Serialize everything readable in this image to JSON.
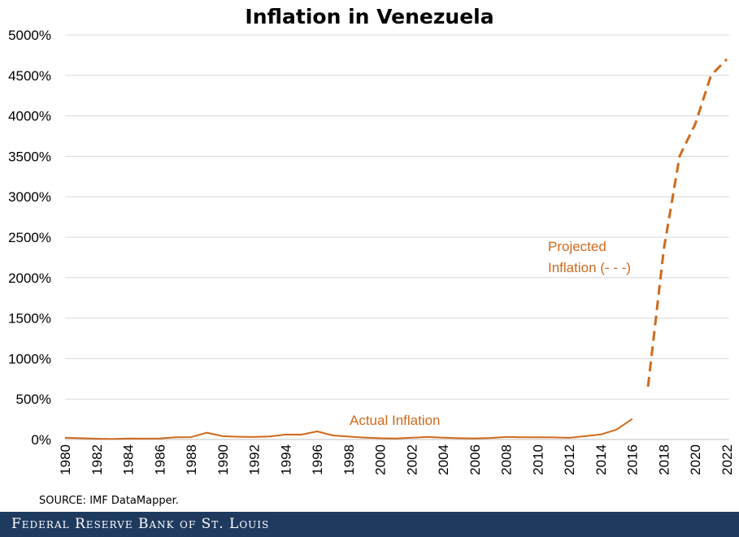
{
  "chart_data": {
    "type": "line",
    "title": "Inflation in Venezuela",
    "xlabel": "",
    "ylabel": "",
    "xlim": [
      1980,
      2022
    ],
    "ylim": [
      0,
      5000
    ],
    "y_ticks": [
      "0%",
      "500%",
      "1000%",
      "1500%",
      "2000%",
      "2500%",
      "3000%",
      "3500%",
      "4000%",
      "4500%",
      "5000%"
    ],
    "x_ticks": [
      "1980",
      "1982",
      "1984",
      "1986",
      "1988",
      "1990",
      "1992",
      "1994",
      "1996",
      "1998",
      "2000",
      "2002",
      "2004",
      "2006",
      "2008",
      "2010",
      "2012",
      "2014",
      "2016",
      "2018",
      "2020",
      "2022"
    ],
    "grid": "horizontal",
    "series": [
      {
        "name": "Actual Inflation",
        "style": "solid",
        "color": "#d06a1c",
        "x": [
          1980,
          1981,
          1982,
          1983,
          1984,
          1985,
          1986,
          1987,
          1988,
          1989,
          1990,
          1991,
          1992,
          1993,
          1994,
          1995,
          1996,
          1997,
          1998,
          1999,
          2000,
          2001,
          2002,
          2003,
          2004,
          2005,
          2006,
          2007,
          2008,
          2009,
          2010,
          2011,
          2012,
          2013,
          2014,
          2015,
          2016
        ],
        "y": [
          21,
          16,
          10,
          6,
          12,
          11,
          12,
          28,
          29,
          84,
          41,
          34,
          31,
          38,
          61,
          60,
          100,
          50,
          36,
          24,
          16,
          13,
          22,
          31,
          22,
          16,
          14,
          19,
          31,
          28,
          28,
          26,
          21,
          41,
          62,
          122,
          254
        ]
      },
      {
        "name": "Projected Inflation (- - -)",
        "style": "dashed",
        "color": "#d06a1c",
        "x": [
          2017,
          2018,
          2019,
          2020,
          2021,
          2022
        ],
        "y": [
          653,
          2350,
          3500,
          3900,
          4500,
          4700
        ]
      }
    ],
    "annotations": [
      {
        "text": "Actual Inflation"
      },
      {
        "text_line1": "Projected",
        "text_line2": "Inflation (- - -)"
      }
    ]
  },
  "source": "SOURCE: IMF DataMapper.",
  "footer": "Federal Reserve Bank of St. Louis"
}
